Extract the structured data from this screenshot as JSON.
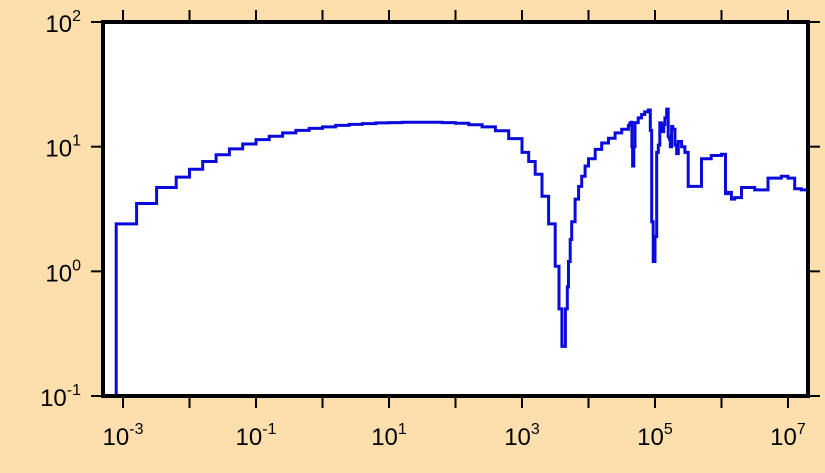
{
  "chart_data": {
    "type": "line",
    "title": "",
    "xlabel": "",
    "ylabel": "",
    "xscale": "log",
    "yscale": "log",
    "xlim": [
      0.0005,
      20000000
    ],
    "ylim": [
      0.1,
      100
    ],
    "grid": false,
    "legend": "none",
    "colors": {
      "background": "#fddfae",
      "plot_area": "#ffffff",
      "frame": "#000000",
      "series": "#0a0adc"
    },
    "x_ticks": [
      {
        "value": 0.001,
        "base": "10",
        "exp": "-3"
      },
      {
        "value": 0.1,
        "base": "10",
        "exp": "-1"
      },
      {
        "value": 10,
        "base": "10",
        "exp": "1"
      },
      {
        "value": 1000,
        "base": "10",
        "exp": "3"
      },
      {
        "value": 100000,
        "base": "10",
        "exp": "5"
      },
      {
        "value": 10000000,
        "base": "10",
        "exp": "7"
      }
    ],
    "x_minor_ticks": [
      0.01,
      1,
      100,
      10000,
      1000000
    ],
    "y_ticks": [
      {
        "value": 0.1,
        "base": "10",
        "exp": "-1"
      },
      {
        "value": 1,
        "base": "10",
        "exp": "0"
      },
      {
        "value": 10,
        "base": "10",
        "exp": "1"
      },
      {
        "value": 100,
        "base": "10",
        "exp": "2"
      }
    ],
    "series": [
      {
        "name": "",
        "style": "step",
        "x": [
          0.00079,
          0.00079,
          0.0016,
          0.0032,
          0.0063,
          0.01,
          0.0158,
          0.0251,
          0.0398,
          0.063,
          0.1,
          0.158,
          0.251,
          0.398,
          0.63,
          1,
          1.58,
          2.51,
          3.98,
          6.3,
          10,
          15.8,
          25.1,
          39.8,
          63,
          100,
          158,
          251,
          398,
          630,
          1000,
          1260,
          1580,
          2000,
          2510,
          3160,
          3600,
          3980,
          4200,
          4500,
          4800,
          5000,
          5300,
          5600,
          6300,
          7100,
          7900,
          8900,
          10000,
          12600,
          15800,
          20000,
          25100,
          31600,
          39800,
          42000,
          44000,
          45000,
          46000,
          48000,
          50100,
          56000,
          63000,
          70000,
          79400,
          85000,
          89100,
          94000,
          100000,
          106000,
          112000,
          118000,
          126000,
          135000,
          141000,
          150000,
          158000,
          165000,
          170000,
          178000,
          185000,
          200000,
          212000,
          224000,
          251000,
          282000,
          316000,
          398000,
          501000,
          700000,
          1000000,
          1150000,
          1260000,
          1410000,
          1580000,
          2000000,
          3160000,
          5010000,
          7940000,
          10000000,
          12600000,
          15800000,
          20000000
        ],
        "y": [
          0.1,
          2.4,
          3.5,
          4.7,
          5.7,
          6.6,
          7.6,
          8.6,
          9.6,
          10.5,
          11.4,
          12.1,
          12.9,
          13.5,
          14.0,
          14.4,
          14.8,
          15.1,
          15.3,
          15.5,
          15.6,
          15.7,
          15.7,
          15.7,
          15.6,
          15.4,
          15.0,
          14.4,
          13.4,
          11.6,
          9.0,
          7.6,
          6.0,
          4.0,
          2.4,
          1.1,
          0.5,
          0.25,
          0.25,
          0.5,
          0.75,
          1.2,
          1.8,
          2.5,
          3.8,
          4.8,
          5.8,
          7.0,
          8.0,
          9.5,
          10.7,
          11.7,
          12.9,
          13.8,
          14.8,
          15.5,
          15.7,
          10.0,
          7.0,
          10.0,
          15.6,
          17.0,
          18.1,
          19.0,
          19.7,
          13.5,
          2.5,
          1.2,
          1.9,
          9.0,
          10.3,
          15.5,
          13.2,
          15.0,
          17.0,
          20.0,
          12.0,
          11.5,
          10.0,
          14.5,
          13.8,
          10.3,
          8.8,
          11.0,
          10.0,
          9.0,
          4.8,
          4.8,
          8.0,
          8.5,
          8.7,
          4.2,
          4.3,
          3.8,
          3.9,
          4.7,
          4.5,
          5.6,
          5.8,
          5.6,
          4.6,
          4.5,
          4.5
        ]
      }
    ]
  }
}
